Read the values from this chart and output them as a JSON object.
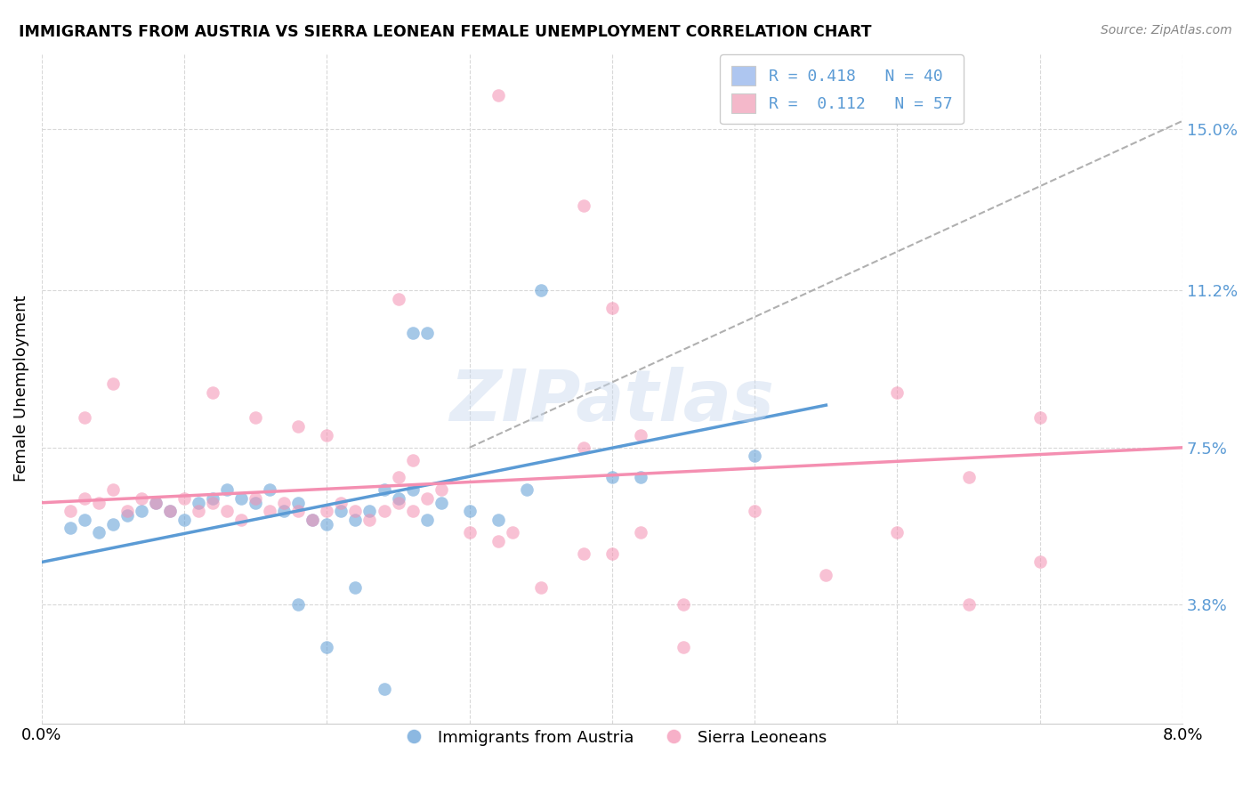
{
  "title": "IMMIGRANTS FROM AUSTRIA VS SIERRA LEONEAN FEMALE UNEMPLOYMENT CORRELATION CHART",
  "source": "Source: ZipAtlas.com",
  "xlabel_bottom_left": "0.0%",
  "xlabel_bottom_right": "8.0%",
  "ylabel": "Female Unemployment",
  "ytick_labels_right": [
    "15.0%",
    "11.2%",
    "7.5%",
    "3.8%"
  ],
  "ytick_vals_right": [
    0.15,
    0.112,
    0.075,
    0.038
  ],
  "legend_label_bottom": [
    "Immigrants from Austria",
    "Sierra Leoneans"
  ],
  "blue_color": "#5b9bd5",
  "pink_color": "#f48fb1",
  "blue_fill_color": "#aec6f0",
  "pink_fill_color": "#f4b8ca",
  "dashed_line_color": "#b0b0b0",
  "watermark": "ZIPatlas",
  "blue_scatter": [
    [
      0.002,
      0.056
    ],
    [
      0.003,
      0.058
    ],
    [
      0.004,
      0.055
    ],
    [
      0.005,
      0.057
    ],
    [
      0.006,
      0.059
    ],
    [
      0.007,
      0.06
    ],
    [
      0.008,
      0.062
    ],
    [
      0.009,
      0.06
    ],
    [
      0.01,
      0.058
    ],
    [
      0.011,
      0.062
    ],
    [
      0.012,
      0.063
    ],
    [
      0.013,
      0.065
    ],
    [
      0.014,
      0.063
    ],
    [
      0.015,
      0.062
    ],
    [
      0.016,
      0.065
    ],
    [
      0.017,
      0.06
    ],
    [
      0.018,
      0.062
    ],
    [
      0.019,
      0.058
    ],
    [
      0.02,
      0.057
    ],
    [
      0.021,
      0.06
    ],
    [
      0.022,
      0.058
    ],
    [
      0.023,
      0.06
    ],
    [
      0.024,
      0.065
    ],
    [
      0.025,
      0.063
    ],
    [
      0.026,
      0.065
    ],
    [
      0.027,
      0.058
    ],
    [
      0.028,
      0.062
    ],
    [
      0.03,
      0.06
    ],
    [
      0.032,
      0.058
    ],
    [
      0.034,
      0.065
    ],
    [
      0.018,
      0.038
    ],
    [
      0.022,
      0.042
    ],
    [
      0.02,
      0.028
    ],
    [
      0.024,
      0.018
    ],
    [
      0.026,
      0.102
    ],
    [
      0.027,
      0.102
    ],
    [
      0.035,
      0.112
    ],
    [
      0.04,
      0.068
    ],
    [
      0.042,
      0.068
    ],
    [
      0.05,
      0.073
    ]
  ],
  "pink_scatter": [
    [
      0.002,
      0.06
    ],
    [
      0.003,
      0.063
    ],
    [
      0.004,
      0.062
    ],
    [
      0.005,
      0.065
    ],
    [
      0.006,
      0.06
    ],
    [
      0.007,
      0.063
    ],
    [
      0.008,
      0.062
    ],
    [
      0.009,
      0.06
    ],
    [
      0.01,
      0.063
    ],
    [
      0.011,
      0.06
    ],
    [
      0.012,
      0.062
    ],
    [
      0.013,
      0.06
    ],
    [
      0.014,
      0.058
    ],
    [
      0.015,
      0.063
    ],
    [
      0.016,
      0.06
    ],
    [
      0.017,
      0.062
    ],
    [
      0.018,
      0.06
    ],
    [
      0.019,
      0.058
    ],
    [
      0.02,
      0.06
    ],
    [
      0.021,
      0.062
    ],
    [
      0.022,
      0.06
    ],
    [
      0.023,
      0.058
    ],
    [
      0.024,
      0.06
    ],
    [
      0.025,
      0.062
    ],
    [
      0.026,
      0.06
    ],
    [
      0.027,
      0.063
    ],
    [
      0.003,
      0.082
    ],
    [
      0.005,
      0.09
    ],
    [
      0.012,
      0.088
    ],
    [
      0.015,
      0.082
    ],
    [
      0.018,
      0.08
    ],
    [
      0.02,
      0.078
    ],
    [
      0.025,
      0.068
    ],
    [
      0.026,
      0.072
    ],
    [
      0.028,
      0.065
    ],
    [
      0.03,
      0.055
    ],
    [
      0.032,
      0.053
    ],
    [
      0.033,
      0.055
    ],
    [
      0.035,
      0.042
    ],
    [
      0.038,
      0.05
    ],
    [
      0.04,
      0.05
    ],
    [
      0.042,
      0.055
    ],
    [
      0.032,
      0.158
    ],
    [
      0.038,
      0.132
    ],
    [
      0.04,
      0.108
    ],
    [
      0.045,
      0.028
    ],
    [
      0.045,
      0.038
    ],
    [
      0.05,
      0.06
    ],
    [
      0.055,
      0.045
    ],
    [
      0.06,
      0.055
    ],
    [
      0.065,
      0.038
    ],
    [
      0.07,
      0.048
    ],
    [
      0.07,
      0.082
    ],
    [
      0.025,
      0.11
    ],
    [
      0.042,
      0.078
    ],
    [
      0.038,
      0.075
    ],
    [
      0.06,
      0.088
    ],
    [
      0.065,
      0.068
    ]
  ],
  "blue_line": {
    "x0": 0.0,
    "y0": 0.048,
    "x1": 0.055,
    "y1": 0.085
  },
  "pink_line": {
    "x0": 0.0,
    "y0": 0.062,
    "x1": 0.08,
    "y1": 0.075
  },
  "dash_line": {
    "x0": 0.03,
    "y0": 0.075,
    "x1": 0.08,
    "y1": 0.152
  },
  "xmin": 0.0,
  "xmax": 0.08,
  "ymin": 0.01,
  "ymax": 0.168,
  "grid_color": "#d8d8d8",
  "background_color": "#ffffff"
}
